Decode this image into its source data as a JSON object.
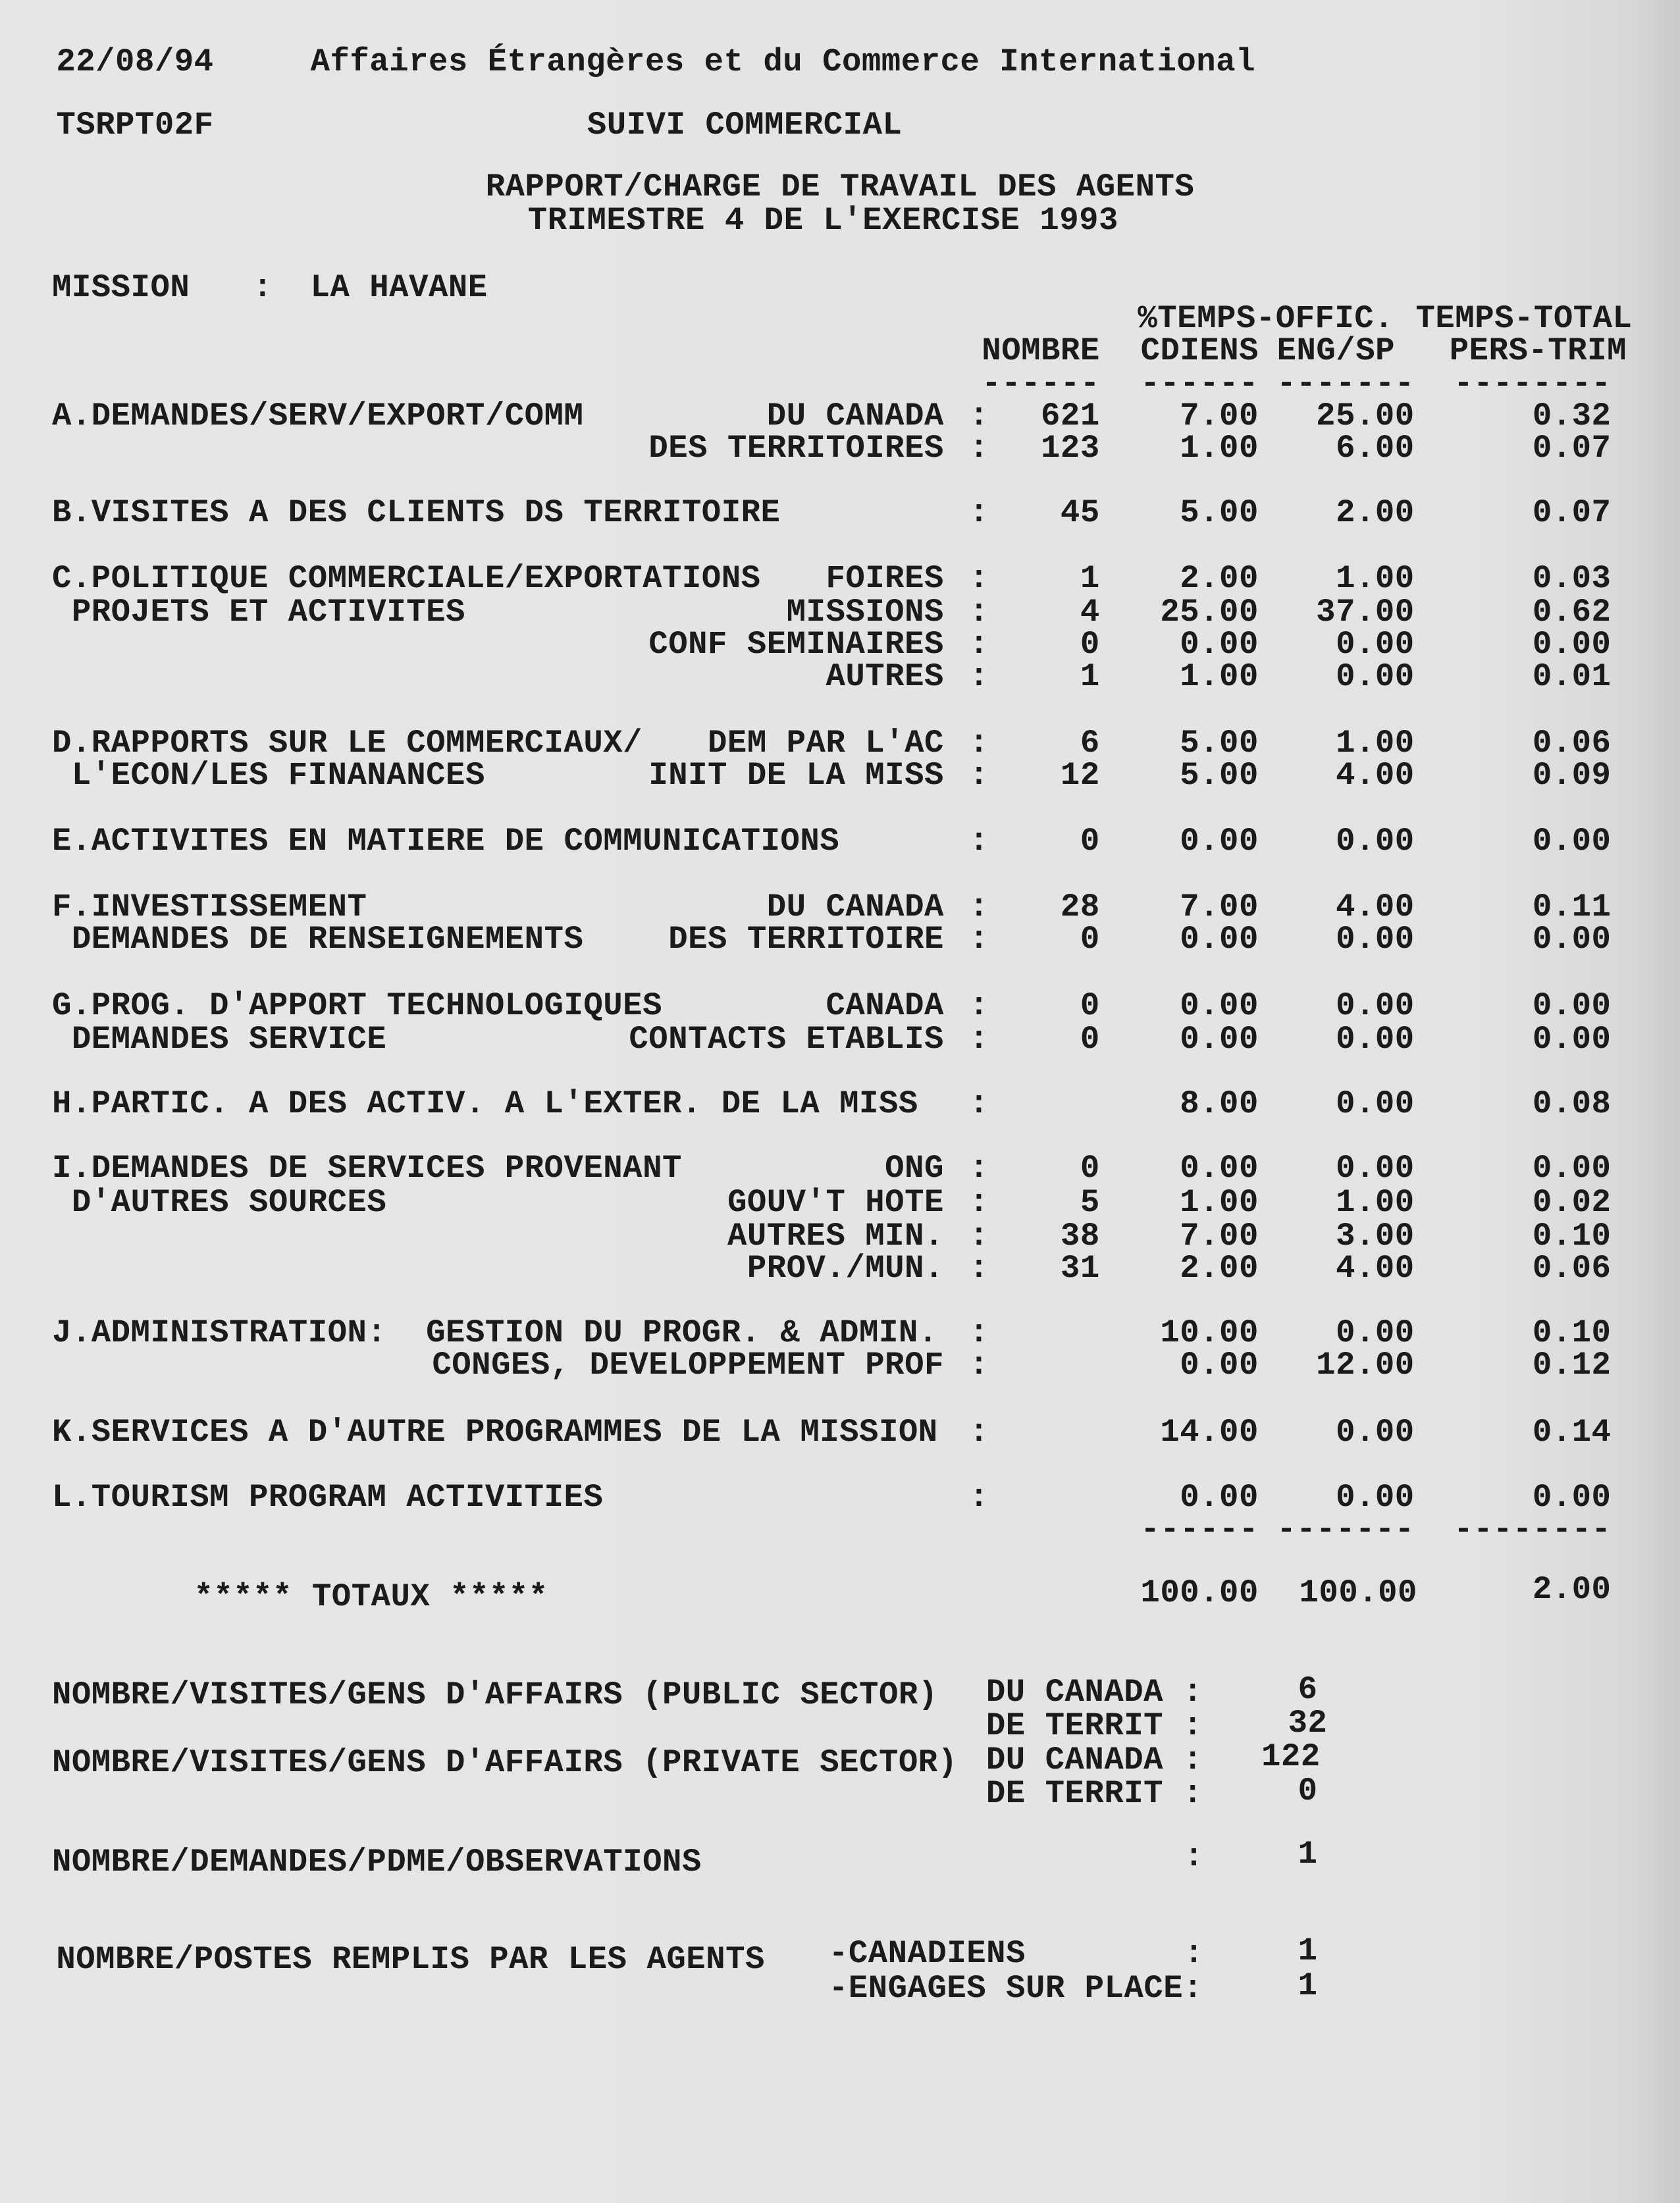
{
  "header": {
    "date": "22/08/94",
    "department": "Affaires Étrangères et du Commerce International",
    "report_code": "TSRPT02F",
    "system": "SUIVI COMMERCIAL",
    "title_line1": "RAPPORT/CHARGE DE TRAVAIL DES AGENTS",
    "title_line2": "TRIMESTRE 4 DE L'EXERCISE 1993",
    "mission_label": "MISSION",
    "mission_sep": ":",
    "mission_value": "LA HAVANE"
  },
  "columns": {
    "group1": "%TEMPS-OFFIC.",
    "group2": "TEMPS-TOTAL",
    "nombre": "NOMBRE",
    "cdiens": "CDIENS",
    "engsp": "ENG/SP",
    "perstrim": "PERS-TRIM",
    "dash_nombre": "------",
    "dash_cdiens": "------",
    "dash_engsp": "-------",
    "dash_perstrim": "--------"
  },
  "rows": [
    {
      "label": "A.DEMANDES/SERV/EXPORT/COMM",
      "sub": "DU CANADA",
      "nombre": "621",
      "cdiens": "7.00",
      "engsp": "25.00",
      "perstrim": "0.32"
    },
    {
      "label": "",
      "sub": "DES TERRITOIRES",
      "nombre": "123",
      "cdiens": "1.00",
      "engsp": "6.00",
      "perstrim": "0.07"
    },
    {
      "label": "B.VISITES A DES CLIENTS DS TERRITOIRE",
      "sub": "",
      "nombre": "45",
      "cdiens": "5.00",
      "engsp": "2.00",
      "perstrim": "0.07"
    },
    {
      "label": "C.POLITIQUE COMMERCIALE/EXPORTATIONS",
      "sub": "FOIRES",
      "nombre": "1",
      "cdiens": "2.00",
      "engsp": "1.00",
      "perstrim": "0.03"
    },
    {
      "label": " PROJETS ET ACTIVITES",
      "sub": "MISSIONS",
      "nombre": "4",
      "cdiens": "25.00",
      "engsp": "37.00",
      "perstrim": "0.62"
    },
    {
      "label": "",
      "sub": "CONF SEMINAIRES",
      "nombre": "0",
      "cdiens": "0.00",
      "engsp": "0.00",
      "perstrim": "0.00"
    },
    {
      "label": "",
      "sub": "AUTRES",
      "nombre": "1",
      "cdiens": "1.00",
      "engsp": "0.00",
      "perstrim": "0.01"
    },
    {
      "label": "D.RAPPORTS SUR LE COMMERCIAUX/",
      "sub": "DEM PAR L'AC",
      "nombre": "6",
      "cdiens": "5.00",
      "engsp": "1.00",
      "perstrim": "0.06"
    },
    {
      "label": " L'ECON/LES FINANANCES",
      "sub": "INIT DE LA MISS",
      "nombre": "12",
      "cdiens": "5.00",
      "engsp": "4.00",
      "perstrim": "0.09"
    },
    {
      "label": "E.ACTIVITES EN MATIERE DE COMMUNICATIONS",
      "sub": "",
      "nombre": "0",
      "cdiens": "0.00",
      "engsp": "0.00",
      "perstrim": "0.00"
    },
    {
      "label": "F.INVESTISSEMENT",
      "sub": "DU CANADA",
      "nombre": "28",
      "cdiens": "7.00",
      "engsp": "4.00",
      "perstrim": "0.11"
    },
    {
      "label": " DEMANDES DE RENSEIGNEMENTS",
      "sub": "DES TERRITOIRE",
      "nombre": "0",
      "cdiens": "0.00",
      "engsp": "0.00",
      "perstrim": "0.00"
    },
    {
      "label": "G.PROG. D'APPORT TECHNOLOGIQUES",
      "sub": "CANADA",
      "nombre": "0",
      "cdiens": "0.00",
      "engsp": "0.00",
      "perstrim": "0.00"
    },
    {
      "label": " DEMANDES SERVICE",
      "sub": "CONTACTS ETABLIS",
      "nombre": "0",
      "cdiens": "0.00",
      "engsp": "0.00",
      "perstrim": "0.00"
    },
    {
      "label": "H.PARTIC. A DES ACTIV. A L'EXTER. DE LA MISS",
      "sub": "",
      "nombre": "",
      "cdiens": "8.00",
      "engsp": "0.00",
      "perstrim": "0.08"
    },
    {
      "label": "I.DEMANDES DE SERVICES PROVENANT",
      "sub": "ONG",
      "nombre": "0",
      "cdiens": "0.00",
      "engsp": "0.00",
      "perstrim": "0.00"
    },
    {
      "label": " D'AUTRES SOURCES",
      "sub": "GOUV'T HOTE",
      "nombre": "5",
      "cdiens": "1.00",
      "engsp": "1.00",
      "perstrim": "0.02"
    },
    {
      "label": "",
      "sub": "AUTRES MIN.",
      "nombre": "38",
      "cdiens": "7.00",
      "engsp": "3.00",
      "perstrim": "0.10"
    },
    {
      "label": "",
      "sub": "PROV./MUN.",
      "nombre": "31",
      "cdiens": "2.00",
      "engsp": "4.00",
      "perstrim": "0.06"
    },
    {
      "label": "J.ADMINISTRATION:  GESTION DU PROGR. & ADMIN.",
      "sub": "",
      "nombre": "",
      "cdiens": "10.00",
      "engsp": "0.00",
      "perstrim": "0.10"
    },
    {
      "label": "",
      "sub": "CONGES, DEVELOPPEMENT PROF",
      "nombre": "",
      "cdiens": "0.00",
      "engsp": "12.00",
      "perstrim": "0.12"
    },
    {
      "label": "K.SERVICES A D'AUTRE PROGRAMMES DE LA MISSION",
      "sub": "",
      "nombre": "",
      "cdiens": "14.00",
      "engsp": "0.00",
      "perstrim": "0.14"
    },
    {
      "label": "L.TOURISM PROGRAM ACTIVITIES",
      "sub": "",
      "nombre": "",
      "cdiens": "0.00",
      "engsp": "0.00",
      "perstrim": "0.00"
    }
  ],
  "totals": {
    "label": "***** TOTAUX *****",
    "cdiens": "100.00",
    "engsp": "100.00",
    "perstrim": "2.00",
    "dash_cdiens": "------",
    "dash_engsp": "-------",
    "dash_perstrim": "--------"
  },
  "footer": {
    "public_label": "NOMBRE/VISITES/GENS D'AFFAIRS (PUBLIC SECTOR)",
    "public_canada_label": "DU CANADA :",
    "public_canada_value": "6",
    "public_territ_label": "DE TERRIT :",
    "public_territ_value": "32",
    "private_label": "NOMBRE/VISITES/GENS D'AFFAIRS (PRIVATE SECTOR)",
    "private_canada_label": "DU CANADA :",
    "private_canada_value": "122",
    "private_territ_label": "DE TERRIT :",
    "private_territ_value": "0",
    "pdme_label": "NOMBRE/DEMANDES/PDME/OBSERVATIONS",
    "pdme_sep": ":",
    "pdme_value": "1",
    "postes_label": "NOMBRE/POSTES REMPLIS PAR LES AGENTS",
    "canadiens_label": "-CANADIENS",
    "canadiens_sep": ":",
    "canadiens_value": "1",
    "engages_label": "-ENGAGES SUR PLACE:",
    "engages_value": "1"
  }
}
